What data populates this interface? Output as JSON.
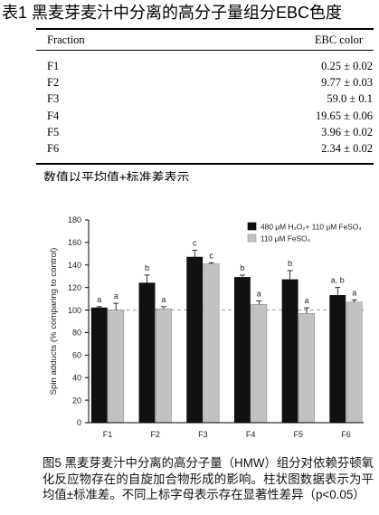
{
  "table": {
    "title": "表1 黑麦芽麦汁中分离的高分子量组分EBC色度",
    "columns": [
      "Fraction",
      "EBC color"
    ],
    "rows": [
      {
        "fraction": "F1",
        "ebc_color": "0.25 ± 0.02"
      },
      {
        "fraction": "F2",
        "ebc_color": "9.77 ± 0.03"
      },
      {
        "fraction": "F3",
        "ebc_color": "59.0 ± 0.1"
      },
      {
        "fraction": "F4",
        "ebc_color": "19.65 ± 0.06"
      },
      {
        "fraction": "F5",
        "ebc_color": "3.96 ± 0.02"
      },
      {
        "fraction": "F6",
        "ebc_color": "2.34 ± 0.02"
      }
    ],
    "footnote": "数值以平均值±标准差表示"
  },
  "figure": {
    "caption": "图5 黑麦芽麦汁中分离的高分子量（HMW）组分对依赖芬顿氧化反应物存在的自旋加合物形成的影响。柱状图数据表示为平均值±标准差。不同上标字母表示存在显著性差异（p<0.05）"
  },
  "chart_data": {
    "type": "bar",
    "categories": [
      "F1",
      "F2",
      "F3",
      "F4",
      "F5",
      "F6"
    ],
    "series": [
      {
        "name": "480 μM H₂O₂+ 110 μM FeSO₄",
        "color": "#111111",
        "values": [
          102,
          124,
          147,
          129,
          127,
          113
        ],
        "errors": [
          1,
          7,
          6,
          2,
          8,
          7
        ],
        "labels": [
          "a",
          "b",
          "c",
          "b",
          "b",
          "a, b"
        ]
      },
      {
        "name": "110 μM FeSO₄",
        "color": "#c2c2c2",
        "values": [
          100,
          101,
          141,
          105,
          97,
          107
        ],
        "errors": [
          6,
          2,
          1,
          3,
          5,
          2
        ],
        "labels": [
          "a",
          "a",
          "c",
          "a",
          "a",
          "a"
        ]
      }
    ],
    "ylabel": "Spin adducts (% comparing to control)",
    "yticks": [
      0,
      20,
      40,
      60,
      80,
      100,
      120,
      140,
      160,
      180
    ],
    "ylim": [
      0,
      180
    ],
    "reference_line": 100,
    "legend": "top-right",
    "grid": false
  }
}
